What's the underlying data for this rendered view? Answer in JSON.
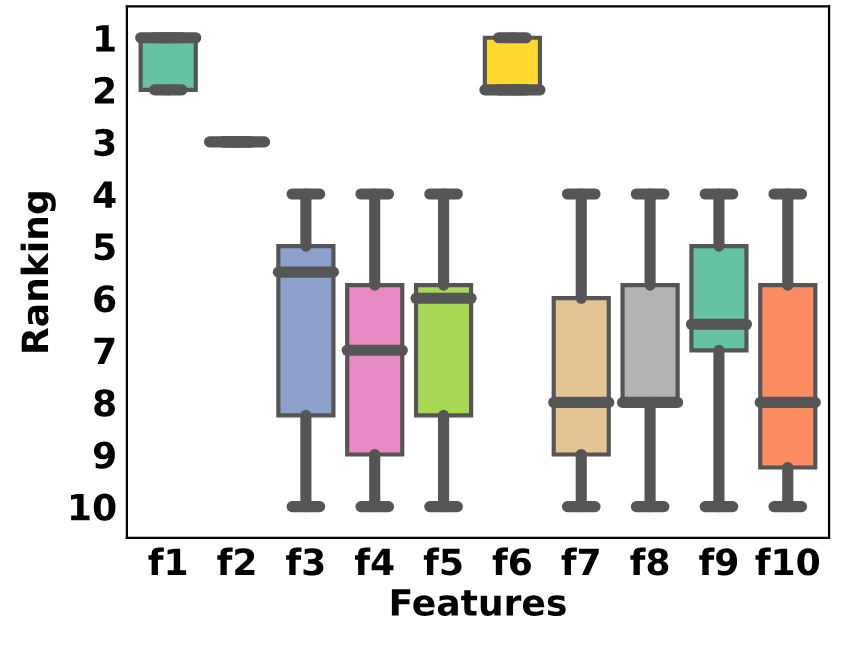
{
  "chart_data": {
    "type": "box",
    "xlabel": "Features",
    "ylabel": "Ranking",
    "categories": [
      "f1",
      "f2",
      "f3",
      "f4",
      "f5",
      "f6",
      "f7",
      "f8",
      "f9",
      "f10"
    ],
    "colors": [
      "#66c2a5",
      null,
      "#8da0cb",
      "#e78ac3",
      "#a6d854",
      "#ffd92f",
      "#e5c494",
      "#b3b3b3",
      "#66c2a5",
      "#fc8d62"
    ],
    "boxes": [
      {
        "low": 1,
        "q1": 1,
        "median": 1,
        "q3": 2,
        "high": 2
      },
      {
        "low": 3,
        "q1": 3,
        "median": 3,
        "q3": 3,
        "high": 3
      },
      {
        "low": 4,
        "q1": 5,
        "median": 5.5,
        "q3": 8.25,
        "high": 10
      },
      {
        "low": 4,
        "q1": 5.75,
        "median": 7,
        "q3": 9,
        "high": 10
      },
      {
        "low": 4,
        "q1": 5.75,
        "median": 6,
        "q3": 8.25,
        "high": 10
      },
      {
        "low": 1,
        "q1": 1,
        "median": 2,
        "q3": 2,
        "high": 2
      },
      {
        "low": 4,
        "q1": 6,
        "median": 8,
        "q3": 9,
        "high": 10
      },
      {
        "low": 4,
        "q1": 5.75,
        "median": 8,
        "q3": 8,
        "high": 10
      },
      {
        "low": 4,
        "q1": 5,
        "median": 6.5,
        "q3": 7,
        "high": 10
      },
      {
        "low": 4,
        "q1": 5.75,
        "median": 8,
        "q3": 9.25,
        "high": 10
      }
    ],
    "ylim": [
      10.6,
      0.4
    ],
    "yticks": [
      1,
      2,
      3,
      4,
      5,
      6,
      7,
      8,
      9,
      10
    ],
    "grid": false
  }
}
